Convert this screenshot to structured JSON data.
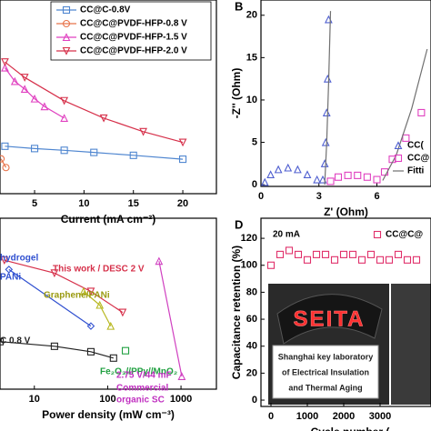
{
  "chart_data": [
    {
      "type": "line",
      "x_label": "Current (mA cm⁻²)",
      "xlim": [
        1.5,
        23.4
      ],
      "ylim": [
        0,
        100
      ],
      "xticks": [
        5,
        10,
        15,
        20
      ],
      "legend": "upper right",
      "series": [
        {
          "name": "CC@C-0.8V",
          "color": "#4f86d0",
          "marker": "square",
          "x": [
            2,
            5,
            8,
            11,
            15,
            20
          ],
          "values": [
            24.5,
            23.3,
            22.4,
            21.3,
            19.8,
            17.8
          ]
        },
        {
          "name": "CC@C@PVDF-HFP-0.8 V",
          "color": "#e8734a",
          "marker": "circle",
          "x": [
            1.6,
            2.1
          ],
          "values": [
            18,
            13.5
          ]
        },
        {
          "name": "CC@C@PVDF-HFP-1.5 V",
          "color": "#e040c0",
          "marker": "triangle",
          "x": [
            2,
            3,
            4,
            5,
            6,
            8
          ],
          "values": [
            65,
            58,
            54,
            49,
            45,
            39
          ]
        },
        {
          "name": "CC@C@PVDF-HFP-2.0 V",
          "color": "#d6304a",
          "marker": "triangle-down",
          "x": [
            2,
            4,
            8,
            12,
            16,
            20
          ],
          "values": [
            68,
            60,
            48,
            39,
            32,
            26.5
          ]
        }
      ]
    },
    {
      "type": "scatter",
      "panel_label": "B",
      "x_label": "Z' (Ohm)",
      "y_label": "-Z'' (Ohm)",
      "xlim": [
        0,
        8.8
      ],
      "ylim": [
        -0.2,
        21.8
      ],
      "xticks": [
        0,
        3,
        6
      ],
      "yticks": [
        0,
        5,
        10,
        15,
        20
      ],
      "legend": "lower right",
      "series": [
        {
          "name": "CC(",
          "color": "#4f5fd0",
          "marker": "triangle",
          "x": [
            0.2,
            0.5,
            0.9,
            1.4,
            1.9,
            2.4,
            2.9,
            3.2,
            3.3,
            3.35,
            3.4,
            3.45,
            3.5
          ],
          "values": [
            0.3,
            1.2,
            1.8,
            2,
            1.8,
            1.2,
            0.6,
            0.6,
            2.5,
            5,
            8.5,
            12.5,
            19.5
          ]
        },
        {
          "name": "CC@",
          "color": "#e040c0",
          "marker": "square",
          "x": [
            3.6,
            4,
            4.5,
            5,
            5.5,
            6,
            6.4,
            6.8,
            7.5,
            8.3
          ],
          "values": [
            0.4,
            0.9,
            1.1,
            1.1,
            0.9,
            0.6,
            1.5,
            3,
            5.5,
            8.5
          ]
        },
        {
          "name": "Fitti",
          "color": "#707070",
          "marker": "line",
          "x": [
            3.3,
            3.4,
            3.5,
            3.6,
            5.2,
            6.3,
            7,
            7.8,
            8.6
          ],
          "values": [
            0,
            5,
            12,
            20.5,
            null,
            0.5,
            3.5,
            9,
            16
          ]
        }
      ]
    },
    {
      "type": "line",
      "x_label": "Power density (mW cm⁻³)",
      "log_x": true,
      "xlim": [
        3.4,
        3040
      ],
      "ylim": [
        0,
        100
      ],
      "xticks": [
        10,
        100,
        1000
      ],
      "series": [
        {
          "color": "#d6304a",
          "marker": "triangle-down",
          "x": [
            3.9,
            18.8,
            59,
            160
          ],
          "values": [
            75.4,
            67.9,
            57.2,
            44.9
          ]
        },
        {
          "color": "#3050d0",
          "marker": "diamond",
          "x": [
            4.5,
            59
          ],
          "values": [
            70,
            36.9
          ]
        },
        {
          "color": "#b8b820",
          "marker": "triangle",
          "x": [
            46.9,
            78,
            110
          ],
          "values": [
            57.2,
            49.2,
            36.9
          ]
        },
        {
          "color": "#222222",
          "marker": "square",
          "x": [
            3.4,
            18.8,
            59,
            120
          ],
          "values": [
            27.8,
            25.1,
            21.9,
            18.2
          ]
        },
        {
          "color": "#20a040",
          "marker": "square",
          "x": [
            175
          ],
          "values": [
            22.5
          ]
        },
        {
          "color": "#d040c0",
          "marker": "triangle",
          "x": [
            501,
            1024
          ],
          "values": [
            74.9,
            7.5
          ]
        }
      ],
      "annotations": [
        {
          "text": "hydrogel",
          "color": "#3050d0"
        },
        {
          "text": "PANi",
          "color": "#3050d0"
        },
        {
          "text": "This work / DESC 2 V",
          "color": "#d6304a"
        },
        {
          "text": "Graphene/PANi",
          "color": "#9a9a10"
        },
        {
          "text": "C 0.8 V",
          "color": "#222222"
        },
        {
          "text": "Fe₂O₃//PPy//MnO₂",
          "color": "#20a040"
        },
        {
          "text": "2.75 V/44 mF",
          "color": "#c030c0"
        },
        {
          "text": "Commercial",
          "color": "#c030c0"
        },
        {
          "text": "organic SC",
          "color": "#c030c0"
        }
      ]
    },
    {
      "type": "scatter",
      "panel_label": "D",
      "x_label": "Cycle number (",
      "y_label": "Capacitance retention (%)",
      "xlim": [
        -275,
        4400
      ],
      "ylim": [
        -4.7,
        134.9
      ],
      "xticks": [
        0,
        1000,
        2000,
        3000
      ],
      "yticks": [
        0,
        20,
        40,
        60,
        80,
        100,
        120
      ],
      "legend": "upper right",
      "series": [
        {
          "name": "CC@C@",
          "color": "#e0306a",
          "marker": "square-open",
          "x": [
            0,
            250,
            500,
            750,
            1000,
            1250,
            1500,
            1750,
            2000,
            2250,
            2500,
            2750,
            3000,
            3250,
            3500,
            3750,
            4000
          ],
          "values": [
            100,
            108,
            111,
            108,
            104,
            108,
            108,
            104,
            108,
            108,
            104,
            108,
            104,
            104,
            108,
            104,
            104
          ]
        }
      ],
      "annotations": [
        {
          "text": "20 mA",
          "color": "#000000"
        }
      ],
      "photo_text": "SEITA",
      "caption": [
        "Shanghai key laboratory",
        "of Electrical Insulation",
        "and Thermal Aging"
      ]
    }
  ]
}
